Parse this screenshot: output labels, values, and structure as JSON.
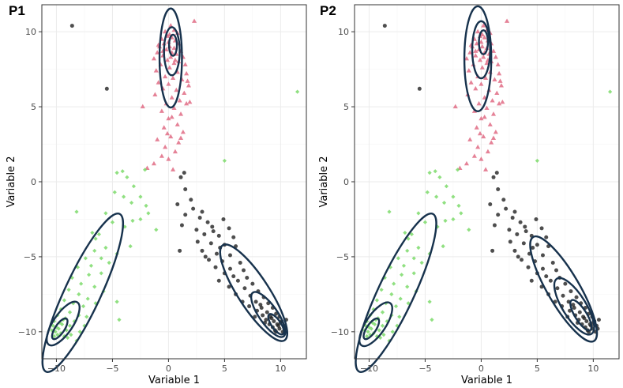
{
  "panels": [
    {
      "tag": "P1"
    },
    {
      "tag": "P2"
    }
  ],
  "colors": {
    "cluster_black": "#222222",
    "cluster_red": "#E06C85",
    "cluster_green": "#7CDB6B",
    "ellipse": "#17324D",
    "ellipse_center": "#2C6FA5",
    "grid_major": "#EBEBEB",
    "grid_minor": "#F5F5F5",
    "panel_border": "#333333"
  },
  "chart_data": [
    {
      "type": "scatter",
      "title": "P1",
      "xlabel": "Variable 1",
      "ylabel": "Variable 2",
      "xlim": [
        -11.3,
        12.3
      ],
      "ylim": [
        -11.8,
        11.8
      ],
      "x_ticks": [
        -10,
        -5,
        0,
        5,
        10
      ],
      "y_ticks": [
        -10,
        -5,
        0,
        5,
        10
      ],
      "x_tick_labels": [
        "−10",
        "−5",
        "0",
        "5",
        "10"
      ],
      "y_tick_labels": [
        "−10",
        "−5",
        "0",
        "5",
        "10"
      ],
      "grid": true,
      "series": [
        {
          "shape": "circle",
          "color": "#222222",
          "points": [
            [
              -8.6,
              10.4
            ],
            [
              -5.5,
              6.2
            ],
            [
              1.4,
              0.6
            ],
            [
              1.1,
              0.3
            ],
            [
              1.5,
              -0.5
            ],
            [
              0.8,
              -1.5
            ],
            [
              2.2,
              -1.8
            ],
            [
              3.0,
              -2.0
            ],
            [
              1.5,
              -2.2
            ],
            [
              2.8,
              -2.4
            ],
            [
              4.9,
              -2.5
            ],
            [
              3.5,
              -2.7
            ],
            [
              1.2,
              -2.9
            ],
            [
              2.5,
              -3.2
            ],
            [
              4.0,
              -3.3
            ],
            [
              5.4,
              -3.1
            ],
            [
              3.2,
              -3.5
            ],
            [
              4.5,
              -3.6
            ],
            [
              5.8,
              -3.7
            ],
            [
              2.6,
              -4.0
            ],
            [
              3.8,
              -4.1
            ],
            [
              5.0,
              -4.2
            ],
            [
              6.0,
              -4.3
            ],
            [
              1.0,
              -4.6
            ],
            [
              3.0,
              -4.6
            ],
            [
              4.3,
              -4.8
            ],
            [
              5.5,
              -4.9
            ],
            [
              3.6,
              -5.2
            ],
            [
              4.8,
              -5.3
            ],
            [
              6.4,
              -5.4
            ],
            [
              4.2,
              -5.7
            ],
            [
              5.5,
              -5.8
            ],
            [
              6.7,
              -5.9
            ],
            [
              5.0,
              -6.1
            ],
            [
              5.8,
              -6.3
            ],
            [
              7.0,
              -6.4
            ],
            [
              4.5,
              -6.6
            ],
            [
              6.2,
              -6.6
            ],
            [
              7.5,
              -6.8
            ],
            [
              5.4,
              -7.0
            ],
            [
              6.8,
              -7.1
            ],
            [
              8.0,
              -7.3
            ],
            [
              6.0,
              -7.5
            ],
            [
              7.3,
              -7.6
            ],
            [
              8.5,
              -7.7
            ],
            [
              6.6,
              -8.0
            ],
            [
              7.8,
              -8.0
            ],
            [
              8.9,
              -8.1
            ],
            [
              7.2,
              -8.3
            ],
            [
              8.3,
              -8.4
            ],
            [
              9.3,
              -8.4
            ],
            [
              7.9,
              -8.6
            ],
            [
              8.8,
              -8.7
            ],
            [
              9.6,
              -8.8
            ],
            [
              8.4,
              -8.9
            ],
            [
              9.1,
              -9.0
            ],
            [
              9.9,
              -9.0
            ],
            [
              8.7,
              -9.2
            ],
            [
              9.4,
              -9.3
            ],
            [
              10.1,
              -9.3
            ],
            [
              9.0,
              -9.5
            ],
            [
              9.7,
              -9.5
            ],
            [
              10.3,
              -9.6
            ],
            [
              9.3,
              -9.7
            ],
            [
              9.9,
              -9.8
            ],
            [
              10.4,
              -9.8
            ],
            [
              9.6,
              -10.0
            ],
            [
              10.2,
              -10.0
            ],
            [
              9.8,
              -9.6
            ],
            [
              9.5,
              -9.9
            ],
            [
              10.0,
              -9.4
            ],
            [
              9.2,
              -9.1
            ],
            [
              8.6,
              -9.4
            ],
            [
              7.7,
              -9.0
            ],
            [
              8.2,
              -8.2
            ],
            [
              10.5,
              -9.2
            ],
            [
              3.9,
              -3.0
            ],
            [
              4.6,
              -4.4
            ],
            [
              2.0,
              -1.2
            ],
            [
              3.3,
              -5.0
            ]
          ]
        },
        {
          "shape": "triangle",
          "color": "#E06C85",
          "points": [
            [
              2.3,
              10.7
            ],
            [
              0.2,
              10.4
            ],
            [
              0.5,
              10.1
            ],
            [
              -0.3,
              10.0
            ],
            [
              0.8,
              9.9
            ],
            [
              -0.1,
              9.7
            ],
            [
              0.3,
              9.6
            ],
            [
              -0.6,
              9.5
            ],
            [
              0.6,
              9.4
            ],
            [
              0.0,
              9.3
            ],
            [
              -0.4,
              9.2
            ],
            [
              0.9,
              9.2
            ],
            [
              0.1,
              9.0
            ],
            [
              -0.8,
              9.0
            ],
            [
              0.5,
              8.9
            ],
            [
              -0.2,
              8.8
            ],
            [
              1.1,
              8.7
            ],
            [
              0.3,
              8.6
            ],
            [
              -1.0,
              8.6
            ],
            [
              0.7,
              8.5
            ],
            [
              -0.5,
              8.4
            ],
            [
              0.2,
              8.3
            ],
            [
              1.3,
              8.3
            ],
            [
              -1.3,
              8.2
            ],
            [
              -0.1,
              8.1
            ],
            [
              0.9,
              8.0
            ],
            [
              0.5,
              7.9
            ],
            [
              -0.7,
              7.8
            ],
            [
              1.5,
              7.8
            ],
            [
              0.1,
              7.6
            ],
            [
              -1.1,
              7.4
            ],
            [
              0.8,
              7.3
            ],
            [
              1.6,
              7.2
            ],
            [
              -0.3,
              7.0
            ],
            [
              0.4,
              6.9
            ],
            [
              1.2,
              6.8
            ],
            [
              -0.9,
              6.6
            ],
            [
              0.0,
              6.5
            ],
            [
              1.8,
              6.4
            ],
            [
              -0.5,
              6.2
            ],
            [
              0.7,
              6.1
            ],
            [
              1.4,
              5.9
            ],
            [
              -1.2,
              5.8
            ],
            [
              0.3,
              5.6
            ],
            [
              1.0,
              5.4
            ],
            [
              -0.2,
              5.2
            ],
            [
              1.6,
              5.2
            ],
            [
              -2.3,
              5.0
            ],
            [
              0.5,
              4.9
            ],
            [
              1.9,
              5.3
            ],
            [
              -0.6,
              4.7
            ],
            [
              1.1,
              4.5
            ],
            [
              0.0,
              4.2
            ],
            [
              0.8,
              3.8
            ],
            [
              -0.4,
              3.6
            ],
            [
              1.3,
              3.3
            ],
            [
              0.2,
              3.0
            ],
            [
              -1.0,
              2.8
            ],
            [
              0.9,
              2.6
            ],
            [
              -0.3,
              2.3
            ],
            [
              0.6,
              2.0
            ],
            [
              -0.6,
              1.7
            ],
            [
              -1.3,
              1.2
            ],
            [
              -1.9,
              0.9
            ],
            [
              0.0,
              1.5
            ],
            [
              0.4,
              0.8
            ],
            [
              0.1,
              9.8
            ],
            [
              -0.9,
              9.1
            ],
            [
              0.6,
              8.1
            ],
            [
              -0.5,
              8.7
            ],
            [
              1.7,
              6.7
            ],
            [
              0.3,
              4.3
            ],
            [
              -0.1,
              3.2
            ],
            [
              1.1,
              2.9
            ]
          ]
        },
        {
          "shape": "diamond",
          "color": "#7CDB6B",
          "points": [
            [
              11.5,
              6.0
            ],
            [
              5.0,
              1.4
            ],
            [
              -4.6,
              0.6
            ],
            [
              -4.1,
              0.7
            ],
            [
              -3.7,
              0.3
            ],
            [
              -3.1,
              -0.3
            ],
            [
              -2.1,
              0.8
            ],
            [
              -4.8,
              -0.7
            ],
            [
              -4.0,
              -1.0
            ],
            [
              -3.3,
              -1.4
            ],
            [
              -2.5,
              -1.0
            ],
            [
              -2.0,
              -1.6
            ],
            [
              -1.8,
              -2.1
            ],
            [
              -2.5,
              -2.5
            ],
            [
              -8.2,
              -2.0
            ],
            [
              -5.6,
              -2.1
            ],
            [
              -6.2,
              -3.5
            ],
            [
              -6.5,
              -3.8
            ],
            [
              -5.6,
              -4.4
            ],
            [
              -4.6,
              -4.8
            ],
            [
              -3.9,
              -3.0
            ],
            [
              -3.4,
              -4.3
            ],
            [
              -3.2,
              -2.6
            ],
            [
              -1.1,
              -3.2
            ],
            [
              -6.6,
              -4.6
            ],
            [
              -6.0,
              -5.1
            ],
            [
              -5.3,
              -5.4
            ],
            [
              -7.4,
              -5.1
            ],
            [
              -6.9,
              -5.6
            ],
            [
              -8.1,
              -5.7
            ],
            [
              -7.1,
              -6.2
            ],
            [
              -6.0,
              -6.1
            ],
            [
              -8.6,
              -6.4
            ],
            [
              -7.8,
              -6.8
            ],
            [
              -6.6,
              -7.0
            ],
            [
              -5.8,
              -7.3
            ],
            [
              -8.9,
              -7.2
            ],
            [
              -8.0,
              -7.5
            ],
            [
              -7.2,
              -7.8
            ],
            [
              -9.3,
              -7.9
            ],
            [
              -8.5,
              -8.1
            ],
            [
              -7.6,
              -8.3
            ],
            [
              -6.5,
              -8.1
            ],
            [
              -9.6,
              -8.5
            ],
            [
              -8.8,
              -8.7
            ],
            [
              -8.0,
              -8.9
            ],
            [
              -7.3,
              -9.0
            ],
            [
              -9.9,
              -8.9
            ],
            [
              -9.2,
              -9.1
            ],
            [
              -8.4,
              -9.3
            ],
            [
              -10.2,
              -9.3
            ],
            [
              -9.5,
              -9.5
            ],
            [
              -8.8,
              -9.6
            ],
            [
              -10.3,
              -9.6
            ],
            [
              -9.8,
              -9.8
            ],
            [
              -9.1,
              -9.9
            ],
            [
              -10.1,
              -10.0
            ],
            [
              -9.6,
              -10.1
            ],
            [
              -10.4,
              -9.9
            ],
            [
              -9.9,
              -10.2
            ],
            [
              -9.3,
              -10.3
            ],
            [
              -10.0,
              -9.7
            ],
            [
              -9.7,
              -9.4
            ],
            [
              -10.2,
              -10.3
            ],
            [
              -9.4,
              -9.2
            ],
            [
              -8.7,
              -10.2
            ],
            [
              -7.9,
              -10.0
            ],
            [
              -8.2,
              -10.6
            ],
            [
              -9.0,
              -10.4
            ],
            [
              -7.5,
              -9.6
            ],
            [
              -4.6,
              -8.0
            ],
            [
              -4.4,
              -9.2
            ],
            [
              -6.8,
              -3.4
            ],
            [
              -5.0,
              -2.7
            ]
          ]
        }
      ],
      "ellipses": [
        {
          "cx": 0.2,
          "cy": 8.25,
          "rx": 1.0,
          "ry": 3.3,
          "angle": 0
        },
        {
          "cx": 0.3,
          "cy": 8.7,
          "rx": 0.7,
          "ry": 1.6,
          "angle": 0
        },
        {
          "cx": 0.4,
          "cy": 9.1,
          "rx": 0.35,
          "ry": 0.7,
          "angle": 0
        },
        {
          "cx": -7.65,
          "cy": -7.4,
          "rx": 6.2,
          "ry": 1.45,
          "angle": 58
        },
        {
          "cx": -9.4,
          "cy": -9.45,
          "rx": 1.9,
          "ry": 0.75,
          "angle": 48
        },
        {
          "cx": -9.7,
          "cy": -9.8,
          "rx": 0.9,
          "ry": 0.35,
          "angle": 48
        },
        {
          "cx": 7.6,
          "cy": -7.4,
          "rx": 4.2,
          "ry": 1.2,
          "angle": -49
        },
        {
          "cx": 8.9,
          "cy": -8.85,
          "rx": 2.0,
          "ry": 0.7,
          "angle": -47
        },
        {
          "cx": 9.6,
          "cy": -9.5,
          "rx": 0.9,
          "ry": 0.35,
          "angle": -47
        }
      ]
    },
    {
      "type": "scatter",
      "title": "P2",
      "xlabel": "Variable 1",
      "ylabel": "Variable 2",
      "xlim": [
        -11.3,
        12.3
      ],
      "ylim": [
        -11.8,
        11.8
      ],
      "x_ticks": [
        -10,
        -5,
        0,
        5,
        10
      ],
      "y_ticks": [
        -10,
        -5,
        0,
        5,
        10
      ],
      "x_tick_labels": [
        "−10",
        "−5",
        "0",
        "5",
        "10"
      ],
      "y_tick_labels": [
        "−10",
        "−5",
        "0",
        "5",
        "10"
      ],
      "grid": true,
      "same_points_as": 0,
      "ellipses": [
        {
          "cx": -0.3,
          "cy": 8.2,
          "rx": 1.2,
          "ry": 3.5,
          "angle": 0
        },
        {
          "cx": 0.0,
          "cy": 8.8,
          "rx": 0.8,
          "ry": 1.9,
          "angle": 0
        },
        {
          "cx": 0.2,
          "cy": 9.3,
          "rx": 0.4,
          "ry": 0.8,
          "angle": 0
        },
        {
          "cx": -7.6,
          "cy": -7.4,
          "rx": 6.2,
          "ry": 1.45,
          "angle": 58
        },
        {
          "cx": -9.4,
          "cy": -9.5,
          "rx": 1.9,
          "ry": 0.75,
          "angle": 48
        },
        {
          "cx": -9.8,
          "cy": -9.8,
          "rx": 0.9,
          "ry": 0.35,
          "angle": 48
        },
        {
          "cx": 7.35,
          "cy": -7.15,
          "rx": 4.4,
          "ry": 1.25,
          "angle": -52
        },
        {
          "cx": 8.3,
          "cy": -8.3,
          "rx": 2.4,
          "ry": 0.9,
          "angle": -50
        },
        {
          "cx": 8.9,
          "cy": -8.9,
          "rx": 1.3,
          "ry": 0.45,
          "angle": -50
        }
      ]
    }
  ]
}
